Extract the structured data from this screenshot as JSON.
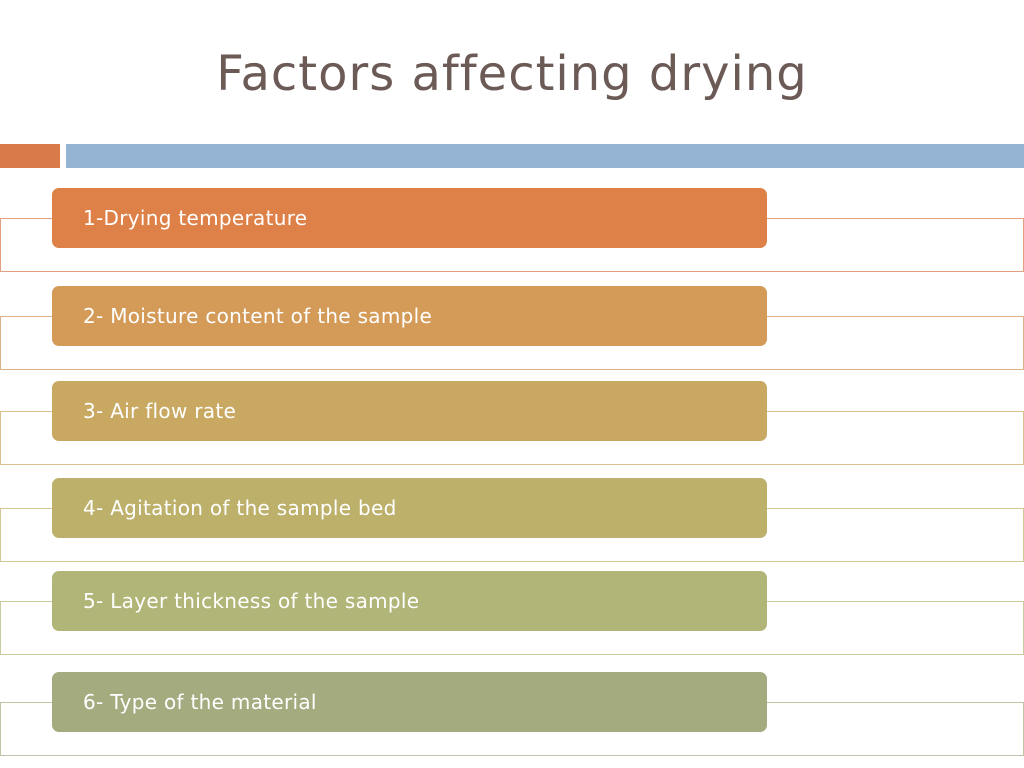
{
  "slide": {
    "title": "Factors affecting drying",
    "colors": {
      "title": "#6b5a55",
      "accent_left": "#d97a4a",
      "accent_right": "#95b3d3"
    }
  },
  "factors": [
    {
      "label": "1-Drying temperature",
      "fill": "#de8148",
      "line": "#e3a07f"
    },
    {
      "label": "2- Moisture content of the sample",
      "fill": "#d49a58",
      "line": "#ddb187"
    },
    {
      "label": "3- Air flow rate",
      "fill": "#c9a862",
      "line": "#d8bf8c"
    },
    {
      "label": "4- Agitation of the sample bed",
      "fill": "#bdb06b",
      "line": "#d2c795"
    },
    {
      "label": "5- Layer thickness of the sample",
      "fill": "#b1b577",
      "line": "#c9cb9f"
    },
    {
      "label": "6- Type of the material",
      "fill": "#a4ab7f",
      "line": "#c0c4a6"
    }
  ]
}
